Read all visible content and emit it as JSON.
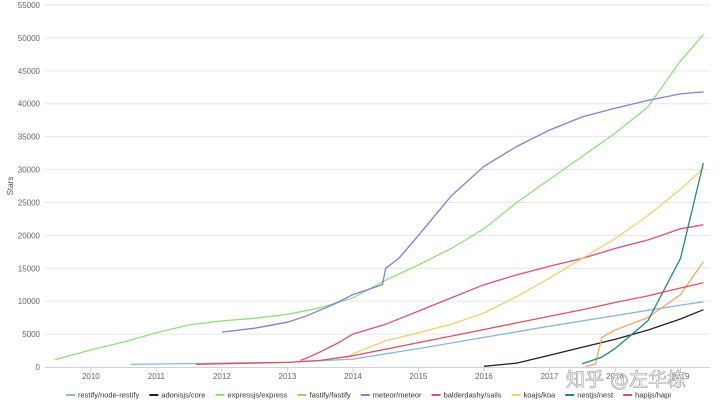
{
  "chart_data": {
    "type": "line",
    "ylabel": "Stars",
    "xlim": [
      2009.3,
      2019.45
    ],
    "ylim": [
      0,
      55000
    ],
    "y_ticks": [
      0,
      5000,
      10000,
      15000,
      20000,
      25000,
      30000,
      35000,
      40000,
      45000,
      50000,
      55000
    ],
    "x_ticks": [
      2010,
      2011,
      2012,
      2013,
      2014,
      2015,
      2016,
      2017,
      2018,
      2019
    ],
    "x_tick_labels": [
      "2010",
      "2011",
      "2012",
      "2013",
      "2014",
      "2015",
      "2016",
      "2017",
      "2018",
      "2019"
    ],
    "grid": "horizontal",
    "legend_position": "bottom",
    "series": [
      {
        "name": "restify/node-restify",
        "color": "#8fb4dc",
        "points": [
          [
            2010.6,
            400
          ],
          [
            2012,
            600
          ],
          [
            2013,
            700
          ],
          [
            2014,
            1200
          ],
          [
            2015,
            2800
          ],
          [
            2016,
            4500
          ],
          [
            2017,
            6200
          ],
          [
            2018,
            7800
          ],
          [
            2019,
            9400
          ],
          [
            2019.35,
            9900
          ]
        ]
      },
      {
        "name": "adonisjs/core",
        "color": "#222222",
        "points": [
          [
            2016,
            100
          ],
          [
            2016.5,
            600
          ],
          [
            2017,
            1800
          ],
          [
            2017.5,
            3000
          ],
          [
            2018,
            4200
          ],
          [
            2018.5,
            5600
          ],
          [
            2019,
            7300
          ],
          [
            2019.35,
            8700
          ]
        ]
      },
      {
        "name": "expressjs/express",
        "color": "#90e07a",
        "points": [
          [
            2009.45,
            1100
          ],
          [
            2010,
            2600
          ],
          [
            2010.5,
            3800
          ],
          [
            2011,
            5200
          ],
          [
            2011.5,
            6400
          ],
          [
            2012,
            7000
          ],
          [
            2012.5,
            7400
          ],
          [
            2013,
            8000
          ],
          [
            2013.5,
            9000
          ],
          [
            2014,
            10500
          ],
          [
            2014.5,
            13200
          ],
          [
            2015,
            15500
          ],
          [
            2015.5,
            18000
          ],
          [
            2016,
            21000
          ],
          [
            2016.5,
            25000
          ],
          [
            2017,
            28500
          ],
          [
            2017.5,
            32000
          ],
          [
            2018,
            35500
          ],
          [
            2018.5,
            39500
          ],
          [
            2019,
            46500
          ],
          [
            2019.35,
            50500
          ]
        ]
      },
      {
        "name": "fastify/fastify",
        "color": "#f0a860",
        "points": [
          [
            2017.55,
            100
          ],
          [
            2017.7,
            400
          ],
          [
            2017.8,
            4500
          ],
          [
            2018,
            5600
          ],
          [
            2018.5,
            7500
          ],
          [
            2019,
            11000
          ],
          [
            2019.35,
            16000
          ]
        ]
      },
      {
        "name": "meteor/meteor",
        "color": "#7f80d8",
        "points": [
          [
            2012,
            5300
          ],
          [
            2012.5,
            5900
          ],
          [
            2013,
            6800
          ],
          [
            2013.3,
            7800
          ],
          [
            2013.7,
            9500
          ],
          [
            2014,
            11000
          ],
          [
            2014.45,
            12500
          ],
          [
            2014.5,
            15000
          ],
          [
            2014.7,
            16500
          ],
          [
            2015,
            20000
          ],
          [
            2015.5,
            26000
          ],
          [
            2016,
            30500
          ],
          [
            2016.5,
            33500
          ],
          [
            2017,
            36000
          ],
          [
            2017.5,
            38000
          ],
          [
            2018,
            39300
          ],
          [
            2018.5,
            40500
          ],
          [
            2019,
            41500
          ],
          [
            2019.35,
            41800
          ]
        ]
      },
      {
        "name": "balderdashy/sails",
        "color": "#e0507a",
        "points": [
          [
            2013.2,
            1000
          ],
          [
            2013.3,
            1400
          ],
          [
            2013.5,
            2300
          ],
          [
            2013.8,
            3800
          ],
          [
            2014,
            5000
          ],
          [
            2014.5,
            6500
          ],
          [
            2015,
            8500
          ],
          [
            2015.5,
            10500
          ],
          [
            2016,
            12500
          ],
          [
            2016.5,
            14000
          ],
          [
            2017,
            15300
          ],
          [
            2017.5,
            16500
          ],
          [
            2018,
            18000
          ],
          [
            2018.5,
            19300
          ],
          [
            2019,
            21000
          ],
          [
            2019.35,
            21600
          ]
        ]
      },
      {
        "name": "koajs/koa",
        "color": "#f0d070",
        "points": [
          [
            2013.9,
            1300
          ],
          [
            2014,
            2000
          ],
          [
            2014.5,
            4000
          ],
          [
            2015,
            5200
          ],
          [
            2015.5,
            6500
          ],
          [
            2016,
            8200
          ],
          [
            2016.5,
            10700
          ],
          [
            2017,
            13500
          ],
          [
            2017.5,
            16500
          ],
          [
            2018,
            19500
          ],
          [
            2018.5,
            23000
          ],
          [
            2019,
            27000
          ],
          [
            2019.35,
            30200
          ]
        ]
      },
      {
        "name": "nestjs/nest",
        "color": "#1f8a80",
        "points": [
          [
            2017.5,
            500
          ],
          [
            2017.8,
            1500
          ],
          [
            2018,
            2800
          ],
          [
            2018.5,
            7000
          ],
          [
            2019,
            16500
          ],
          [
            2019.35,
            31000
          ]
        ]
      },
      {
        "name": "hapijs/hapi",
        "color": "#e05060",
        "points": [
          [
            2011.6,
            400
          ],
          [
            2012,
            500
          ],
          [
            2013,
            700
          ],
          [
            2013.5,
            1000
          ],
          [
            2014,
            1700
          ],
          [
            2014.5,
            2700
          ],
          [
            2015,
            3700
          ],
          [
            2015.5,
            4700
          ],
          [
            2016,
            5700
          ],
          [
            2016.5,
            6700
          ],
          [
            2017,
            7700
          ],
          [
            2017.5,
            8700
          ],
          [
            2018,
            9800
          ],
          [
            2018.5,
            10800
          ],
          [
            2019,
            12000
          ],
          [
            2019.35,
            12800
          ]
        ]
      }
    ]
  },
  "watermark": {
    "text": "知乎 @左华栋"
  }
}
